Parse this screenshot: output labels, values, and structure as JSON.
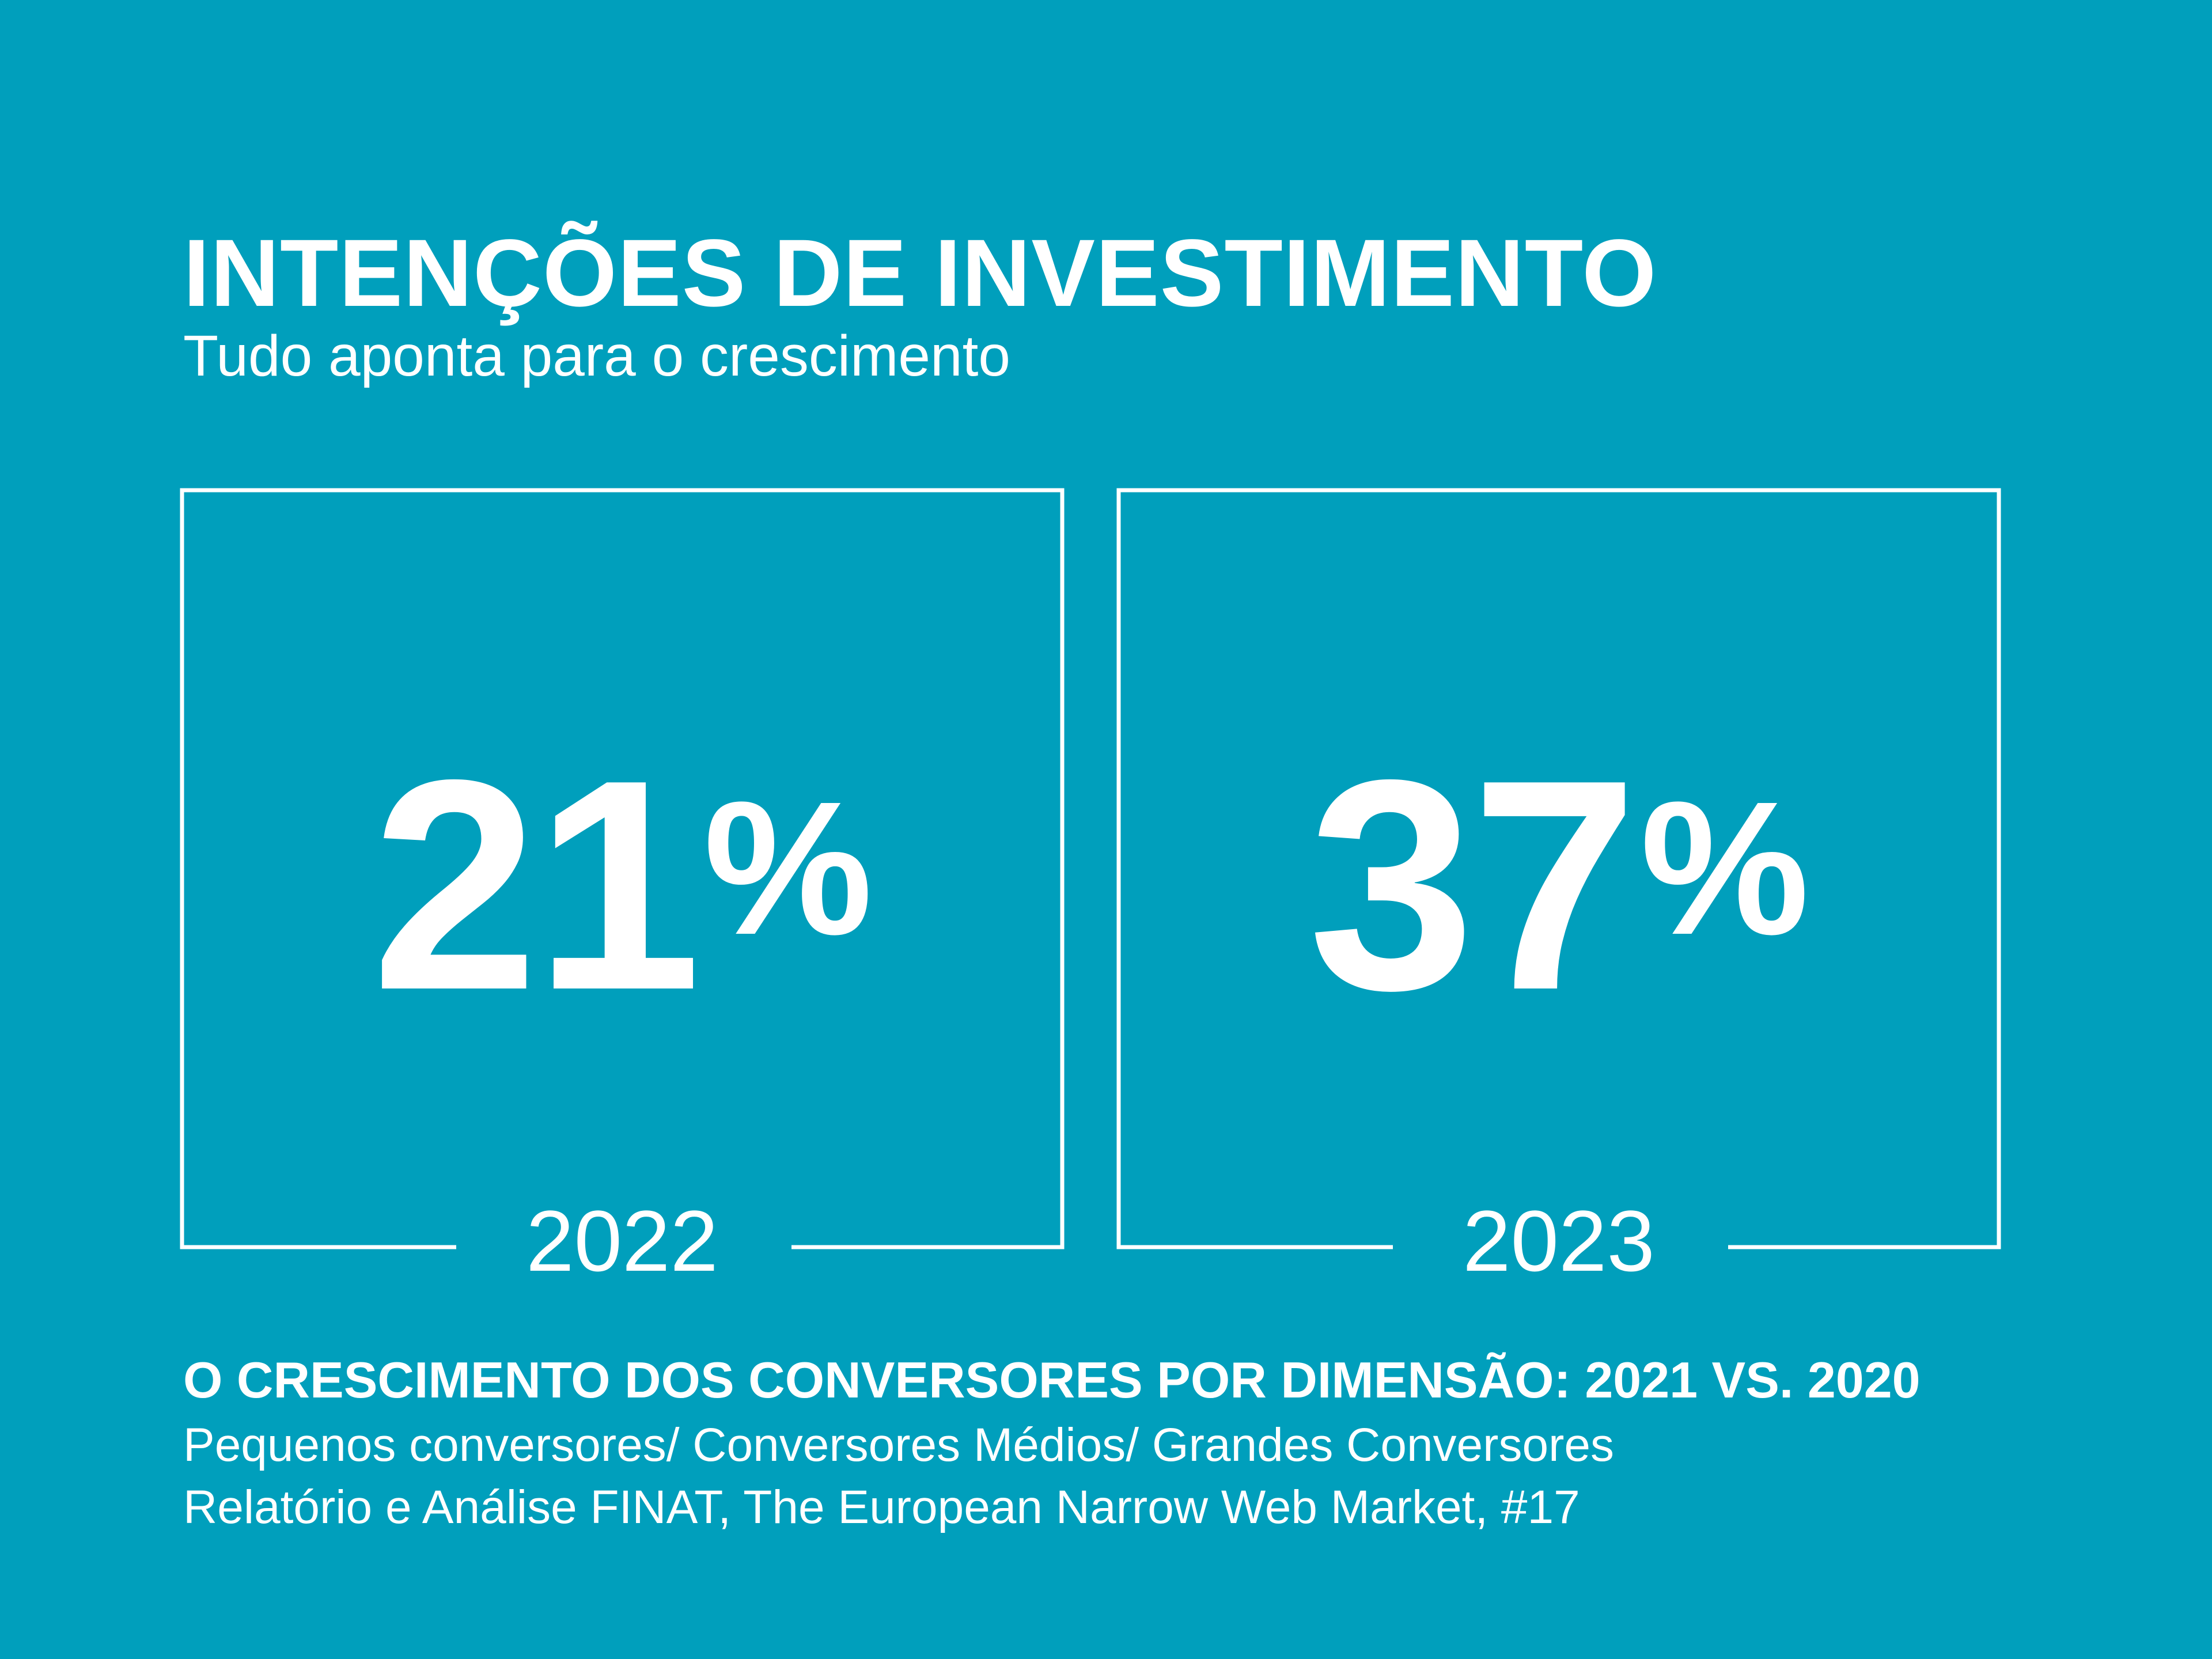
{
  "header": {
    "title": "INTENÇÕES DE  INVESTIMENTO",
    "subtitle": "Tudo aponta para o crescimento"
  },
  "stats": [
    {
      "value": "21",
      "unit": "%",
      "year": "2022"
    },
    {
      "value": "37",
      "unit": "%",
      "year": "2023"
    }
  ],
  "footer": {
    "heading": "O CRESCIMENTO DOS CONVERSORES POR DIMENSÃO: 2021 VS. 2020",
    "line1": "Pequenos conversores/ Conversores Médios/ Grandes Conversores",
    "line2": "Relatório e Análise FINAT, The European Narrow Web Market, #17"
  },
  "colors": {
    "background": "#009fbc",
    "foreground": "#ffffff"
  }
}
